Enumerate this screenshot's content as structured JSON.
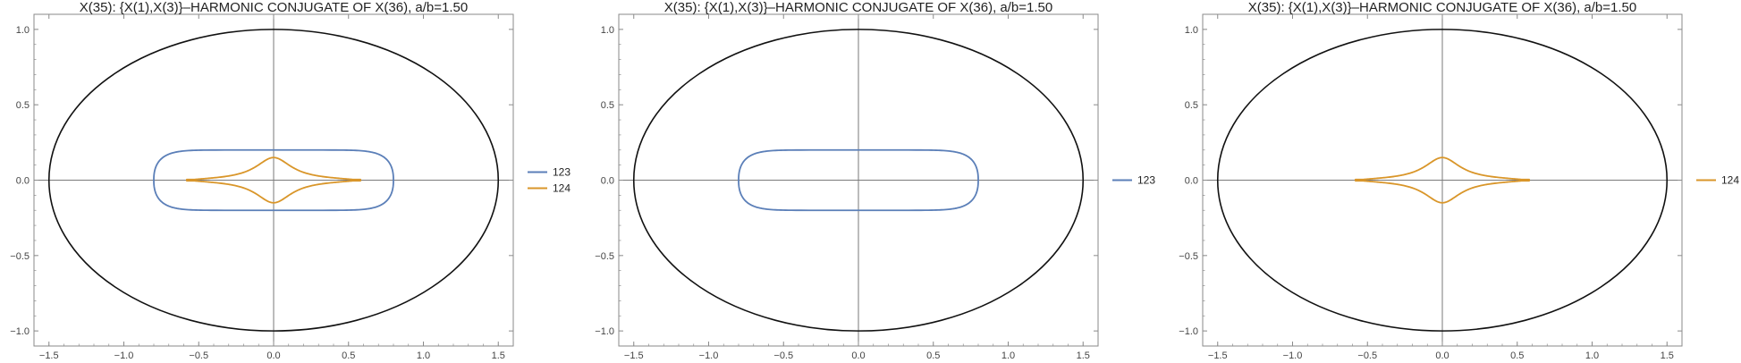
{
  "colors": {
    "s123": "#5b7fb8",
    "s124": "#d9962a",
    "ellipse": "#111111",
    "axis": "#7a7a7a",
    "frame": "#8a8a8a"
  },
  "chart_data": [
    {
      "type": "line",
      "title": "X(35): {X(1),X(3)}–HARMONIC CONJUGATE OF X(36), a/b=1.50",
      "xlim": [
        -1.6,
        1.6
      ],
      "ylim": [
        -1.1,
        1.1
      ],
      "xticks": [
        "-1.5",
        "-1.0",
        "-0.5",
        "0.0",
        "0.5",
        "1.0",
        "1.5"
      ],
      "yticks": [
        "-1.0",
        "-0.5",
        "0.0",
        "0.5",
        "1.0"
      ],
      "ellipse": {
        "a": 1.5,
        "b": 1.0
      },
      "legend_position": "right",
      "series": [
        {
          "name": "123",
          "color": "#5b7fb8",
          "shape": "rounded-rect",
          "x_extent": 0.8,
          "y_extent": 0.2
        },
        {
          "name": "124",
          "color": "#d9962a",
          "shape": "cusp",
          "x_extent": 0.58,
          "y_peak": 0.15
        }
      ]
    },
    {
      "type": "line",
      "title": "X(35): {X(1),X(3)}–HARMONIC CONJUGATE OF X(36), a/b=1.50",
      "xlim": [
        -1.6,
        1.6
      ],
      "ylim": [
        -1.1,
        1.1
      ],
      "xticks": [
        "-1.5",
        "-1.0",
        "-0.5",
        "0.0",
        "0.5",
        "1.0",
        "1.5"
      ],
      "yticks": [
        "-1.0",
        "-0.5",
        "0.0",
        "0.5",
        "1.0"
      ],
      "ellipse": {
        "a": 1.5,
        "b": 1.0
      },
      "legend_position": "right",
      "series": [
        {
          "name": "123",
          "color": "#5b7fb8",
          "shape": "rounded-rect",
          "x_extent": 0.8,
          "y_extent": 0.2
        }
      ]
    },
    {
      "type": "line",
      "title": "X(35): {X(1),X(3)}–HARMONIC CONJUGATE OF X(36), a/b=1.50",
      "xlim": [
        -1.6,
        1.6
      ],
      "ylim": [
        -1.1,
        1.1
      ],
      "xticks": [
        "-1.5",
        "-1.0",
        "-0.5",
        "0.0",
        "0.5",
        "1.0",
        "1.5"
      ],
      "yticks": [
        "-1.0",
        "-0.5",
        "0.0",
        "0.5",
        "1.0"
      ],
      "ellipse": {
        "a": 1.5,
        "b": 1.0
      },
      "legend_position": "right",
      "series": [
        {
          "name": "124",
          "color": "#d9962a",
          "shape": "cusp",
          "x_extent": 0.58,
          "y_peak": 0.15
        }
      ]
    }
  ]
}
